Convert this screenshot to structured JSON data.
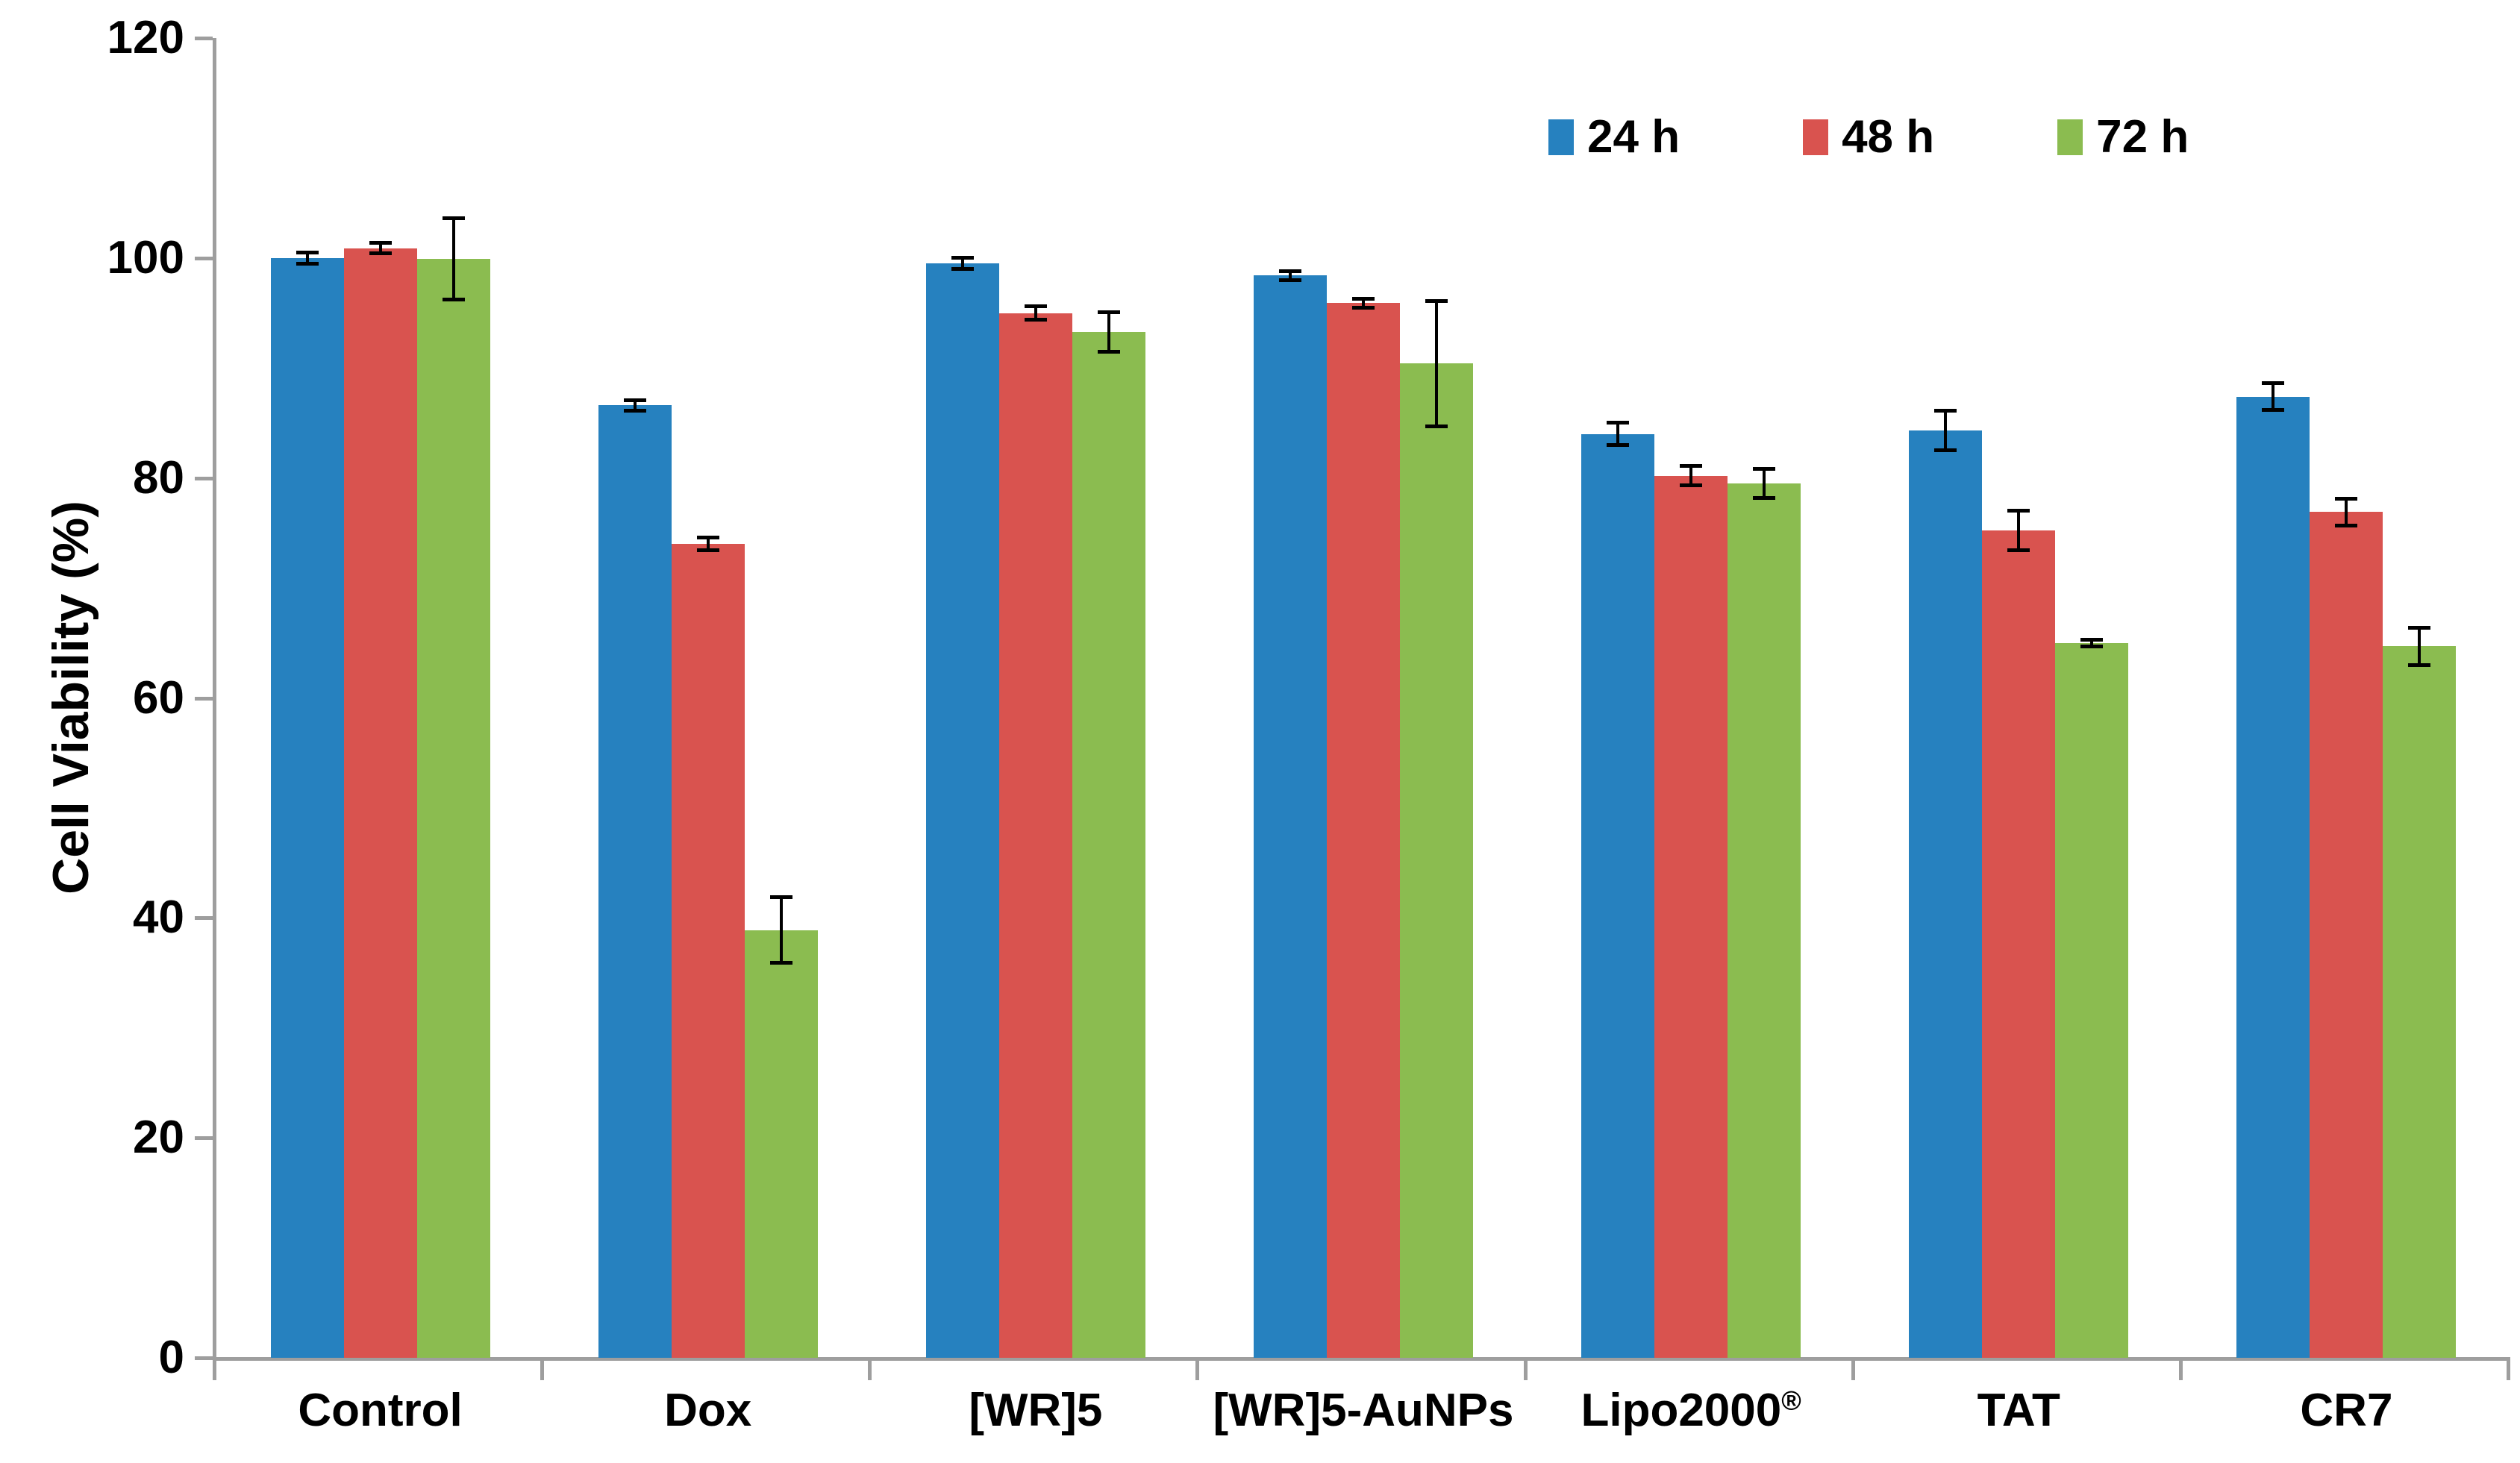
{
  "chart_data": {
    "type": "bar",
    "title": "",
    "ylabel": "Cell Viability (%)",
    "xlabel": "",
    "ylim": [
      0,
      120
    ],
    "yticks": [
      0,
      20,
      40,
      60,
      80,
      100,
      120
    ],
    "grid": false,
    "legend_position": "top-right",
    "axis_color": "#9e9e9e",
    "error_bar_color": "#000000",
    "categories": [
      "Control",
      "Dox",
      "[WR]5",
      "[WR]5-AuNPs",
      "Lipo2000®",
      "TAT",
      "CR7"
    ],
    "series": [
      {
        "name": "24 h",
        "color": "#2681bf",
        "values": [
          100.0,
          86.6,
          99.5,
          98.4,
          84.0,
          84.3,
          87.4
        ],
        "errors": [
          0.5,
          0.5,
          0.5,
          0.4,
          1.0,
          1.8,
          1.2
        ]
      },
      {
        "name": "48 h",
        "color": "#d9534f",
        "values": [
          100.9,
          74.0,
          95.0,
          95.9,
          80.2,
          75.2,
          76.9
        ],
        "errors": [
          0.5,
          0.6,
          0.6,
          0.4,
          0.9,
          1.8,
          1.2
        ]
      },
      {
        "name": "72 h",
        "color": "#8bbc50",
        "values": [
          99.9,
          38.9,
          93.3,
          90.4,
          79.5,
          65.0,
          64.7
        ],
        "errors": [
          3.7,
          3.0,
          1.8,
          5.7,
          1.3,
          0.3,
          1.7
        ]
      }
    ]
  }
}
